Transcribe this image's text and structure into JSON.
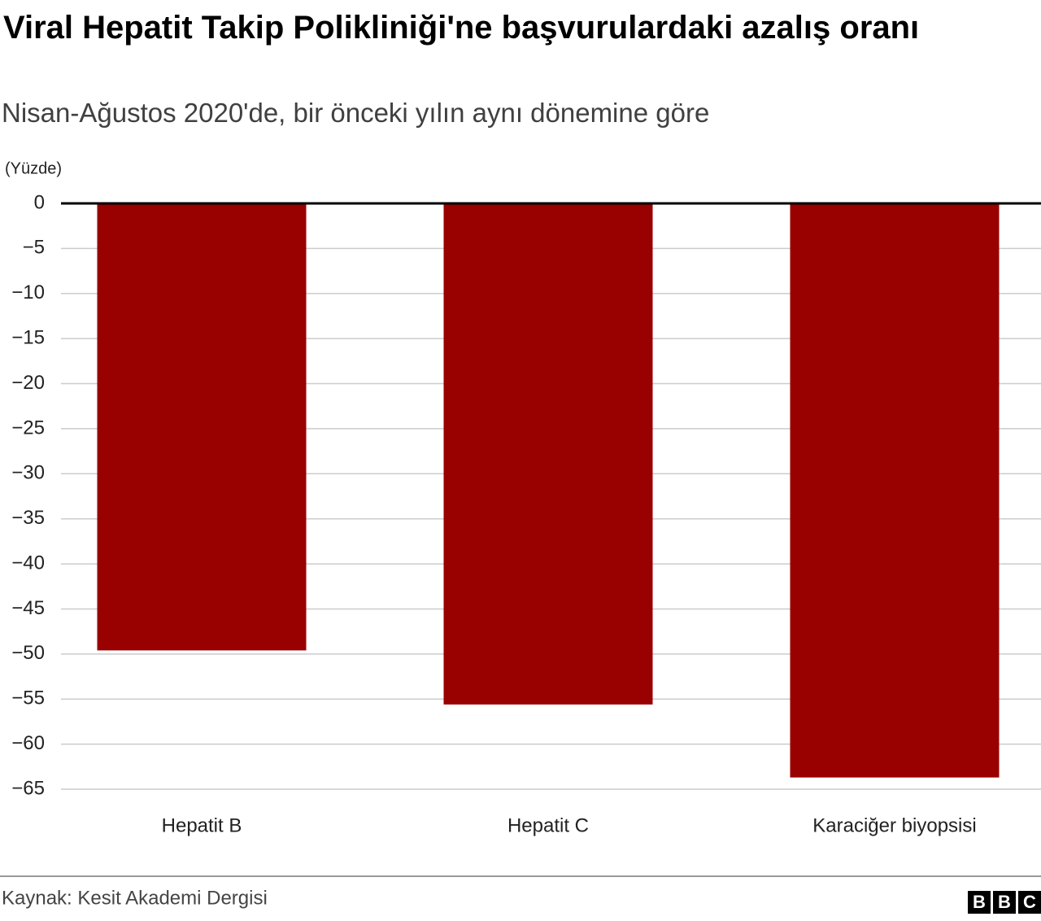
{
  "chart_data": {
    "type": "bar",
    "title": "Viral Hepatit Takip Polikliniği'ne başvurulardaki azalış oranı",
    "subtitle": "Nisan-Ağustos 2020'de, bir önceki yılın aynı dönemine göre",
    "y_label": "(Yüzde)",
    "categories": [
      "Hepatit B",
      "Hepatit C",
      "Karaciğer biyopsisi"
    ],
    "values": [
      -49.6,
      -55.6,
      -63.7
    ],
    "color": "#990000",
    "ylim": [
      -65,
      0
    ],
    "yticks": [
      0,
      {
        "value": -5,
        "label": "−5"
      },
      {
        "value": -10,
        "label": "−10"
      },
      {
        "value": -15,
        "label": "−15"
      },
      {
        "value": -20,
        "label": "−20"
      },
      {
        "value": -25,
        "label": "−25"
      },
      {
        "value": -30,
        "label": "−30"
      },
      {
        "value": -35,
        "label": "−35"
      },
      {
        "value": -40,
        "label": "−40"
      },
      {
        "value": -45,
        "label": "−45"
      },
      {
        "value": -50,
        "label": "−50"
      },
      {
        "value": -55,
        "label": "−55"
      },
      {
        "value": -60,
        "label": "−60"
      },
      {
        "value": -65,
        "label": "−65"
      }
    ],
    "grid": true,
    "source": "Kaynak: Kesit Akademi Dergisi",
    "logo": [
      "B",
      "B",
      "C"
    ]
  }
}
